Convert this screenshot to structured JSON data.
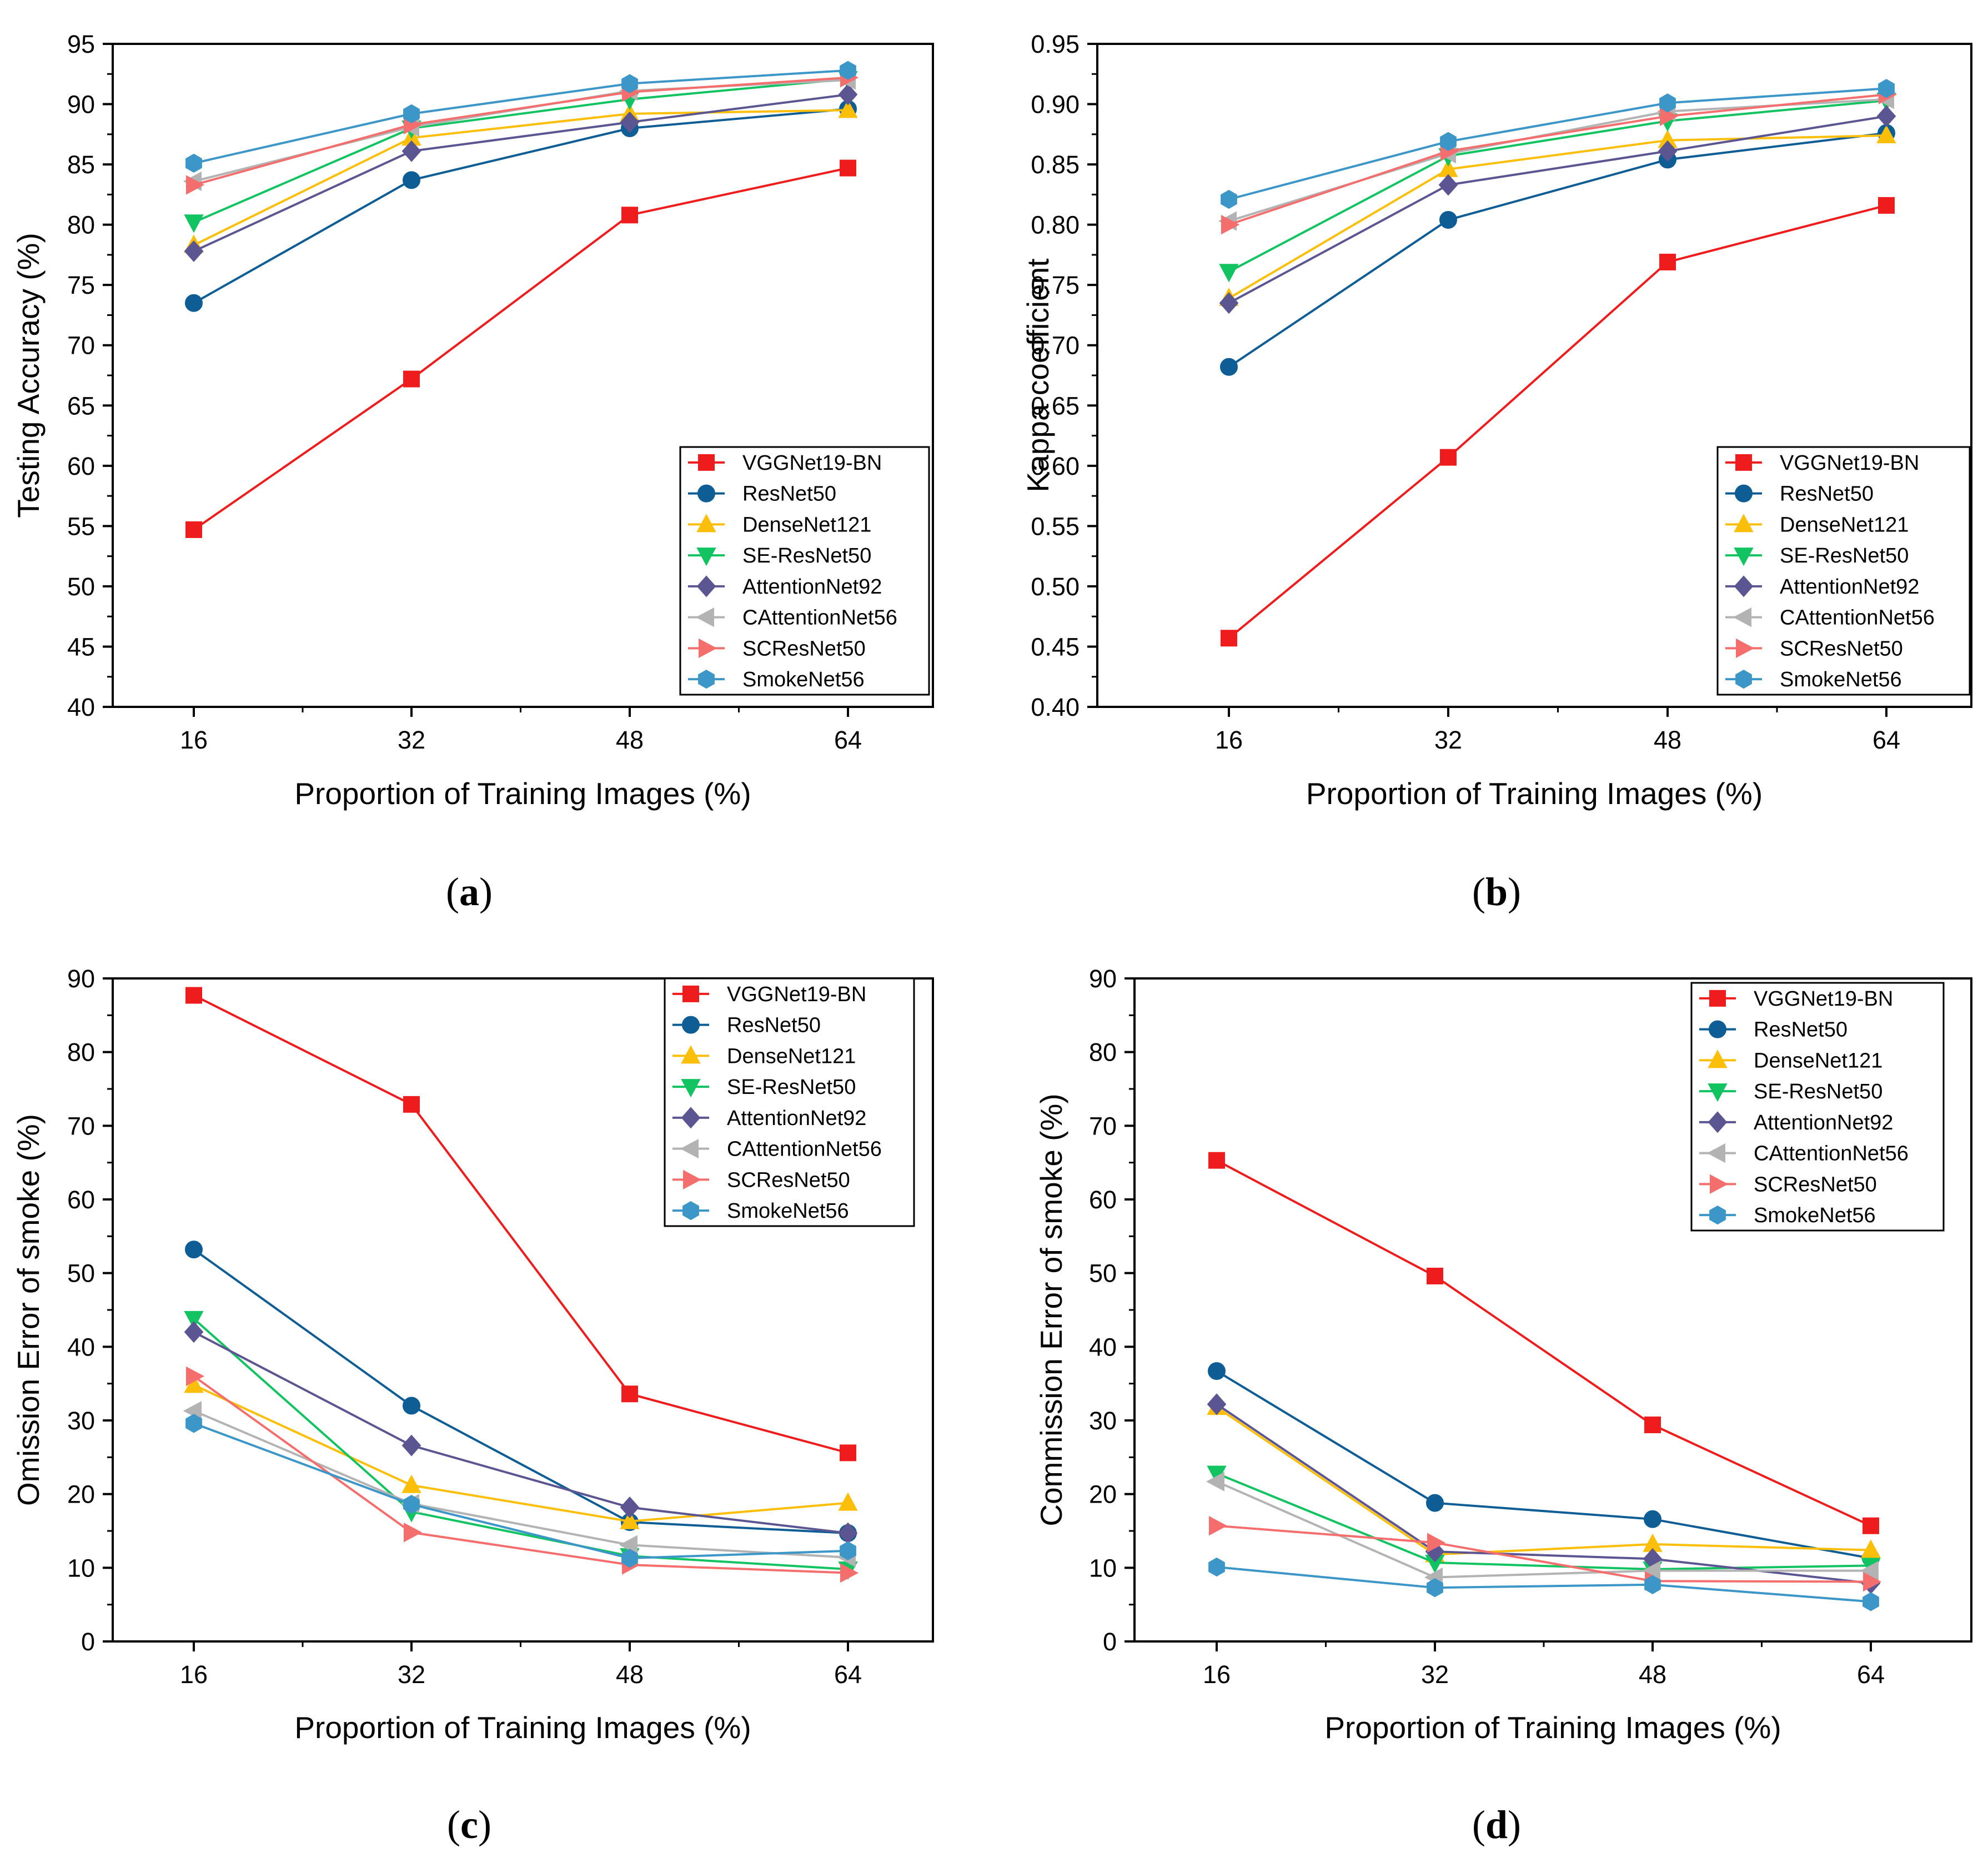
{
  "colors": {
    "VGGNet19-BN": "#ee1c1c",
    "ResNet50": "#0f5d95",
    "DenseNet121": "#fbbf0a",
    "SE-ResNet50": "#12c361",
    "AttentionNet92": "#5b5592",
    "CAttentionNet56": "#b3b3b3",
    "SCResNet50": "#f46e6e",
    "SmokeNet56": "#3c96c8"
  },
  "markers": {
    "VGGNet19-BN": "square",
    "ResNet50": "circle",
    "DenseNet121": "triangle-up",
    "SE-ResNet50": "triangle-down",
    "AttentionNet92": "diamond",
    "CAttentionNet56": "triangle-left",
    "SCResNet50": "triangle-right",
    "SmokeNet56": "hexagon"
  },
  "chart_data": [
    {
      "id": "a",
      "type": "line",
      "panel_label": "a",
      "xlabel": "Proportion of Training Images (%)",
      "ylabel": "Testing Accuracy (%)",
      "x": [
        16,
        32,
        48,
        64
      ],
      "xticks": [
        "16",
        "32",
        "48",
        "64"
      ],
      "ylim": [
        40,
        95
      ],
      "yticks": [
        "40",
        "45",
        "50",
        "55",
        "60",
        "65",
        "70",
        "75",
        "80",
        "85",
        "90",
        "95"
      ],
      "legend_position": "bottom-right",
      "series": [
        {
          "name": "VGGNet19-BN",
          "values": [
            54.7,
            67.2,
            80.8,
            84.7
          ]
        },
        {
          "name": "ResNet50",
          "values": [
            73.5,
            83.7,
            88.0,
            89.6
          ]
        },
        {
          "name": "DenseNet121",
          "values": [
            78.3,
            87.2,
            89.2,
            89.5
          ]
        },
        {
          "name": "SE-ResNet50",
          "values": [
            80.2,
            88.0,
            90.4,
            92.1
          ]
        },
        {
          "name": "AttentionNet92",
          "values": [
            77.8,
            86.1,
            88.5,
            90.8
          ]
        },
        {
          "name": "CAttentionNet56",
          "values": [
            83.6,
            88.1,
            91.1,
            92.0
          ]
        },
        {
          "name": "SCResNet50",
          "values": [
            83.3,
            88.3,
            91.0,
            92.2
          ]
        },
        {
          "name": "SmokeNet56",
          "values": [
            85.1,
            89.2,
            91.7,
            92.8
          ]
        }
      ]
    },
    {
      "id": "b",
      "type": "line",
      "panel_label": "b",
      "xlabel": "Proportion of Training Images (%)",
      "ylabel": "Kappa coefficient",
      "x": [
        16,
        32,
        48,
        64
      ],
      "xticks": [
        "16",
        "32",
        "48",
        "64"
      ],
      "ylim": [
        0.4,
        0.95
      ],
      "yticks": [
        "0.40",
        "0.45",
        "0.50",
        "0.55",
        "0.60",
        "0.65",
        "0.70",
        "0.75",
        "0.80",
        "0.85",
        "0.90",
        "0.95"
      ],
      "legend_position": "bottom-right",
      "series": [
        {
          "name": "VGGNet19-BN",
          "values": [
            0.457,
            0.607,
            0.769,
            0.816
          ]
        },
        {
          "name": "ResNet50",
          "values": [
            0.682,
            0.804,
            0.854,
            0.876
          ]
        },
        {
          "name": "DenseNet121",
          "values": [
            0.739,
            0.846,
            0.87,
            0.874
          ]
        },
        {
          "name": "SE-ResNet50",
          "values": [
            0.761,
            0.857,
            0.886,
            0.903
          ]
        },
        {
          "name": "AttentionNet92",
          "values": [
            0.735,
            0.833,
            0.861,
            0.89
          ]
        },
        {
          "name": "CAttentionNet56",
          "values": [
            0.803,
            0.859,
            0.894,
            0.904
          ]
        },
        {
          "name": "SCResNet50",
          "values": [
            0.8,
            0.861,
            0.89,
            0.908
          ]
        },
        {
          "name": "SmokeNet56",
          "values": [
            0.821,
            0.869,
            0.901,
            0.913
          ]
        }
      ]
    },
    {
      "id": "c",
      "type": "line",
      "panel_label": "c",
      "xlabel": "Proportion of Training Images (%)",
      "ylabel": "Omission Error of smoke (%)",
      "x": [
        16,
        32,
        48,
        64
      ],
      "xticks": [
        "16",
        "32",
        "48",
        "64"
      ],
      "ylim": [
        0,
        90
      ],
      "yticks": [
        "0",
        "10",
        "20",
        "30",
        "40",
        "50",
        "60",
        "70",
        "80",
        "90"
      ],
      "legend_position": "top-right",
      "series": [
        {
          "name": "VGGNet19-BN",
          "values": [
            87.7,
            72.9,
            33.6,
            25.6
          ]
        },
        {
          "name": "ResNet50",
          "values": [
            53.2,
            32.0,
            16.2,
            14.7
          ]
        },
        {
          "name": "DenseNet121",
          "values": [
            34.8,
            21.2,
            16.3,
            18.8
          ]
        },
        {
          "name": "SE-ResNet50",
          "values": [
            43.8,
            17.6,
            11.6,
            9.8
          ]
        },
        {
          "name": "AttentionNet92",
          "values": [
            42.0,
            26.6,
            18.2,
            14.7
          ]
        },
        {
          "name": "CAttentionNet56",
          "values": [
            31.3,
            18.7,
            13.1,
            11.4
          ]
        },
        {
          "name": "SCResNet50",
          "values": [
            36.0,
            14.8,
            10.4,
            9.3
          ]
        },
        {
          "name": "SmokeNet56",
          "values": [
            29.6,
            18.6,
            11.3,
            12.3
          ]
        }
      ]
    },
    {
      "id": "d",
      "type": "line",
      "panel_label": "d",
      "xlabel": "Proportion of Training Images (%)",
      "ylabel": "Commission Error of smoke (%)",
      "x": [
        16,
        32,
        48,
        64
      ],
      "xticks": [
        "16",
        "32",
        "48",
        "64"
      ],
      "ylim": [
        0,
        90
      ],
      "yticks": [
        "0",
        "10",
        "20",
        "30",
        "40",
        "50",
        "60",
        "70",
        "80",
        "90"
      ],
      "legend_position": "top-right",
      "series": [
        {
          "name": "VGGNet19-BN",
          "values": [
            65.3,
            49.6,
            29.4,
            15.7
          ]
        },
        {
          "name": "ResNet50",
          "values": [
            36.7,
            18.8,
            16.6,
            11.3
          ]
        },
        {
          "name": "DenseNet121",
          "values": [
            31.8,
            11.8,
            13.2,
            12.4
          ]
        },
        {
          "name": "SE-ResNet50",
          "values": [
            22.8,
            10.7,
            9.8,
            10.3
          ]
        },
        {
          "name": "AttentionNet92",
          "values": [
            32.2,
            12.2,
            11.2,
            7.9
          ]
        },
        {
          "name": "CAttentionNet56",
          "values": [
            21.7,
            8.7,
            9.6,
            9.6
          ]
        },
        {
          "name": "SCResNet50",
          "values": [
            15.7,
            13.4,
            8.2,
            8.1
          ]
        },
        {
          "name": "SmokeNet56",
          "values": [
            10.1,
            7.3,
            7.7,
            5.4
          ]
        }
      ]
    }
  ]
}
